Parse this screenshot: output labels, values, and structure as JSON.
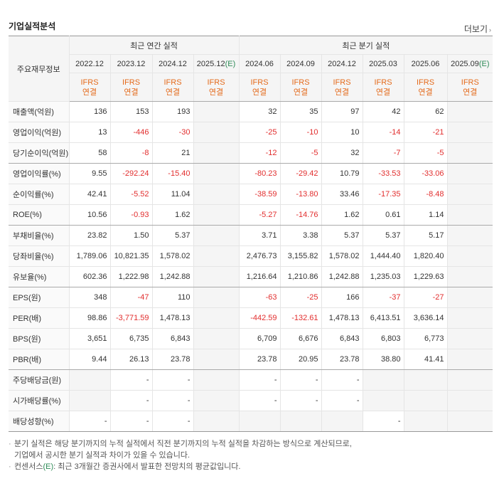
{
  "section": {
    "title": "기업실적분석",
    "more_label": "더보기",
    "more_chevron": "›"
  },
  "table": {
    "row_header_label": "주요재무정보",
    "group_annual": "최근 연간 실적",
    "group_quarter": "최근 분기 실적",
    "ifrs_label": "IFRS",
    "ifrs_sub": "연결",
    "annual_periods": [
      {
        "label": "2022.12",
        "estimate": false
      },
      {
        "label": "2023.12",
        "estimate": false
      },
      {
        "label": "2024.12",
        "estimate": false
      },
      {
        "label": "2025.12",
        "suffix": "(E)",
        "estimate": true
      }
    ],
    "quarter_periods": [
      {
        "label": "2024.06",
        "estimate": false
      },
      {
        "label": "2024.09",
        "estimate": false
      },
      {
        "label": "2024.12",
        "estimate": false
      },
      {
        "label": "2025.03",
        "estimate": false
      },
      {
        "label": "2025.06",
        "estimate": false
      },
      {
        "label": "2025.09",
        "suffix": "(E)",
        "estimate": true
      }
    ],
    "rows": [
      {
        "label": "매출액(억원)",
        "annual": [
          "136",
          "153",
          "193",
          ""
        ],
        "quarter": [
          "32",
          "35",
          "97",
          "42",
          "62",
          ""
        ]
      },
      {
        "label": "영업이익(억원)",
        "annual": [
          "13",
          "-446",
          "-30",
          ""
        ],
        "quarter": [
          "-25",
          "-10",
          "10",
          "-14",
          "-21",
          ""
        ]
      },
      {
        "label": "당기순이익(억원)",
        "annual": [
          "58",
          "-8",
          "21",
          ""
        ],
        "quarter": [
          "-12",
          "-5",
          "32",
          "-7",
          "-5",
          ""
        ],
        "sep": true
      },
      {
        "label": "영업이익률(%)",
        "annual": [
          "9.55",
          "-292.24",
          "-15.40",
          ""
        ],
        "quarter": [
          "-80.23",
          "-29.42",
          "10.79",
          "-33.53",
          "-33.06",
          ""
        ]
      },
      {
        "label": "순이익률(%)",
        "annual": [
          "42.41",
          "-5.52",
          "11.04",
          ""
        ],
        "quarter": [
          "-38.59",
          "-13.80",
          "33.46",
          "-17.35",
          "-8.48",
          ""
        ]
      },
      {
        "label": "ROE(%)",
        "annual": [
          "10.56",
          "-0.93",
          "1.62",
          ""
        ],
        "quarter": [
          "-5.27",
          "-14.76",
          "1.62",
          "0.61",
          "1.14",
          ""
        ],
        "sep": true
      },
      {
        "label": "부채비율(%)",
        "annual": [
          "23.82",
          "1.50",
          "5.37",
          ""
        ],
        "quarter": [
          "3.71",
          "3.38",
          "5.37",
          "5.37",
          "5.17",
          ""
        ]
      },
      {
        "label": "당좌비율(%)",
        "annual": [
          "1,789.06",
          "10,821.35",
          "1,578.02",
          ""
        ],
        "quarter": [
          "2,476.73",
          "3,155.82",
          "1,578.02",
          "1,444.40",
          "1,820.40",
          ""
        ]
      },
      {
        "label": "유보율(%)",
        "annual": [
          "602.36",
          "1,222.98",
          "1,242.88",
          ""
        ],
        "quarter": [
          "1,216.64",
          "1,210.86",
          "1,242.88",
          "1,235.03",
          "1,229.63",
          ""
        ],
        "sep": true
      },
      {
        "label": "EPS(원)",
        "annual": [
          "348",
          "-47",
          "110",
          ""
        ],
        "quarter": [
          "-63",
          "-25",
          "166",
          "-37",
          "-27",
          ""
        ]
      },
      {
        "label": "PER(배)",
        "annual": [
          "98.86",
          "-3,771.59",
          "1,478.13",
          ""
        ],
        "quarter": [
          "-442.59",
          "-132.61",
          "1,478.13",
          "6,413.51",
          "3,636.14",
          ""
        ]
      },
      {
        "label": "BPS(원)",
        "annual": [
          "3,651",
          "6,735",
          "6,843",
          ""
        ],
        "quarter": [
          "6,709",
          "6,676",
          "6,843",
          "6,803",
          "6,773",
          ""
        ]
      },
      {
        "label": "PBR(배)",
        "annual": [
          "9.44",
          "26.13",
          "23.78",
          ""
        ],
        "quarter": [
          "23.78",
          "20.95",
          "23.78",
          "38.80",
          "41.41",
          ""
        ],
        "sep": true
      },
      {
        "label": "주당배당금(원)",
        "annual": [
          "",
          "-",
          "-",
          ""
        ],
        "quarter": [
          "-",
          "-",
          "-",
          "",
          "",
          ""
        ],
        "grey_a": [
          0
        ],
        "grey_q": [
          3,
          4
        ]
      },
      {
        "label": "시가배당률(%)",
        "annual": [
          "",
          "-",
          "-",
          ""
        ],
        "quarter": [
          "-",
          "-",
          "-",
          "",
          "",
          ""
        ],
        "grey_a": [
          0
        ],
        "grey_q": [
          3,
          4
        ]
      },
      {
        "label": "배당성향(%)",
        "annual": [
          "-",
          "-",
          "-",
          ""
        ],
        "quarter": [
          "",
          "",
          "",
          "-",
          "",
          ""
        ],
        "grey_a": [],
        "grey_q": [
          0,
          1,
          2,
          4
        ],
        "last": true
      }
    ]
  },
  "notes": {
    "line1": "분기 실적은 해당 분기까지의 누적 실적에서 직전 분기까지의 누적 실적을 차감하는 방식으로 계산되므로,",
    "line1b": "기업에서 공시한 분기 실적과 차이가 있을 수 있습니다.",
    "line2_prefix": "컨센서스",
    "line2_e": "(E)",
    "line2_suffix": ": 최근 3개월간 증권사에서 발표한 전망치의 평균값입니다.",
    "bullet": "·"
  },
  "colors": {
    "negative": "#e22e2e",
    "ifrs": "#e46a1b",
    "estimate": "#2e8b57"
  }
}
